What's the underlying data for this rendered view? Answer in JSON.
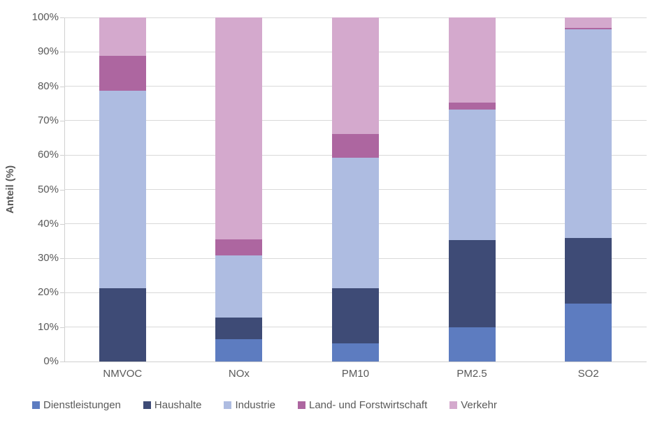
{
  "chart_data": {
    "type": "bar",
    "stacked": true,
    "percent_stacked": true,
    "title": "",
    "xlabel": "",
    "ylabel": "Anteil (%)",
    "ylim": [
      0,
      100
    ],
    "ytick_step": 10,
    "ytick_labels": [
      "0%",
      "10%",
      "20%",
      "30%",
      "40%",
      "50%",
      "60%",
      "70%",
      "80%",
      "90%",
      "100%"
    ],
    "grid": true,
    "legend_position": "bottom",
    "categories": [
      "NMVOC",
      "NOx",
      "PM10",
      "PM2.5",
      "SO2"
    ],
    "series": [
      {
        "name": "Dienstleistungen",
        "color": "#5D7CC0",
        "values": [
          0,
          6.5,
          5.2,
          9.9,
          16.8
        ]
      },
      {
        "name": "Haushalte",
        "color": "#3E4B76",
        "values": [
          21.2,
          6.3,
          16.2,
          25.3,
          19.2
        ]
      },
      {
        "name": "Industrie",
        "color": "#AEBCE1",
        "values": [
          57.5,
          18.0,
          37.9,
          38.0,
          60.6
        ]
      },
      {
        "name": "Land- und Forstwirtschaft",
        "color": "#AD66A0",
        "values": [
          10.1,
          4.7,
          6.8,
          2.0,
          0.4
        ]
      },
      {
        "name": "Verkehr",
        "color": "#D4A9CD",
        "values": [
          11.2,
          64.5,
          33.9,
          24.8,
          3.0
        ]
      }
    ],
    "colors": {
      "text": "#595959",
      "gridline": "#D9D9D9",
      "axis_line": "#CFCFCF",
      "background": "#FFFFFF"
    }
  }
}
